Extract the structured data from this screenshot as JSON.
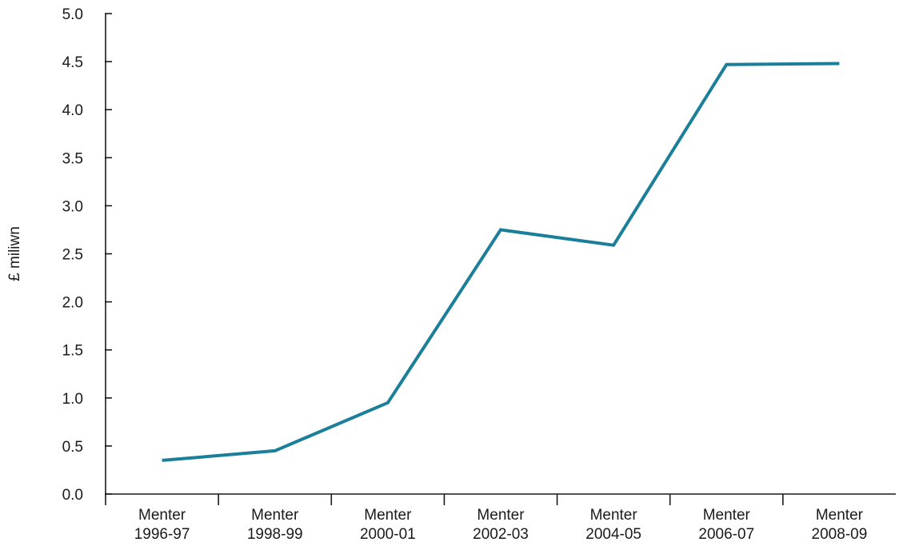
{
  "chart_data": {
    "type": "line",
    "title": "",
    "xlabel": "",
    "ylabel": "£ miliwn",
    "ylim": [
      0,
      5
    ],
    "yticks": [
      "0.0",
      "0.5",
      "1.0",
      "1.5",
      "2.0",
      "2.5",
      "3.0",
      "3.5",
      "4.0",
      "4.5",
      "5.0"
    ],
    "categories": [
      [
        "Menter",
        "1996-97"
      ],
      [
        "Menter",
        "1998-99"
      ],
      [
        "Menter",
        "2000-01"
      ],
      [
        "Menter",
        "2002-03"
      ],
      [
        "Menter",
        "2004-05"
      ],
      [
        "Menter",
        "2006-07"
      ],
      [
        "Menter",
        "2008-09"
      ]
    ],
    "series": [
      {
        "values": [
          0.35,
          0.45,
          0.95,
          2.75,
          2.59,
          4.47,
          4.48
        ],
        "color": "#1b7f99"
      }
    ],
    "grid": false,
    "legend": "none"
  }
}
